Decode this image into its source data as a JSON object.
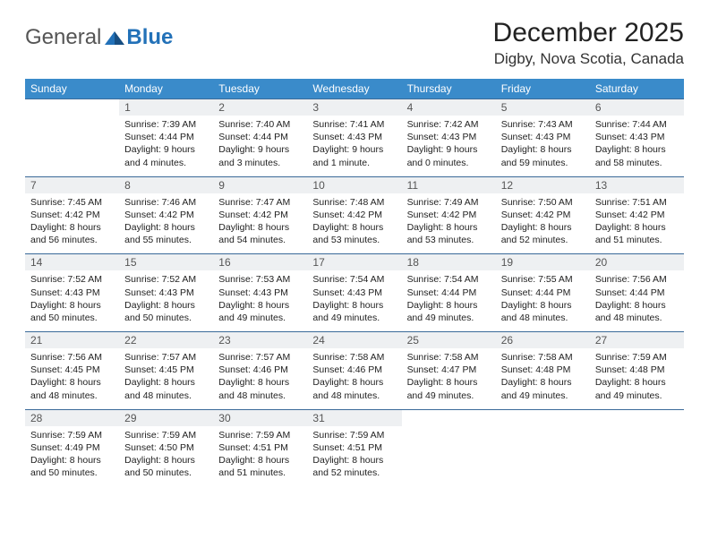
{
  "brand": {
    "part1": "General",
    "part2": "Blue"
  },
  "title": "December 2025",
  "location": "Digby, Nova Scotia, Canada",
  "colors": {
    "header_bg": "#3a8bca",
    "header_text": "#ffffff",
    "daynum_bg": "#eef0f2",
    "daynum_text": "#555555",
    "row_border": "#3a6a99",
    "body_text": "#222222",
    "brand_gray": "#555555",
    "brand_blue": "#2271b8",
    "background": "#ffffff"
  },
  "days_of_week": [
    "Sunday",
    "Monday",
    "Tuesday",
    "Wednesday",
    "Thursday",
    "Friday",
    "Saturday"
  ],
  "first_weekday_index": 1,
  "days": [
    {
      "n": 1,
      "sunrise": "7:39 AM",
      "sunset": "4:44 PM",
      "daylight": "9 hours and 4 minutes."
    },
    {
      "n": 2,
      "sunrise": "7:40 AM",
      "sunset": "4:44 PM",
      "daylight": "9 hours and 3 minutes."
    },
    {
      "n": 3,
      "sunrise": "7:41 AM",
      "sunset": "4:43 PM",
      "daylight": "9 hours and 1 minute."
    },
    {
      "n": 4,
      "sunrise": "7:42 AM",
      "sunset": "4:43 PM",
      "daylight": "9 hours and 0 minutes."
    },
    {
      "n": 5,
      "sunrise": "7:43 AM",
      "sunset": "4:43 PM",
      "daylight": "8 hours and 59 minutes."
    },
    {
      "n": 6,
      "sunrise": "7:44 AM",
      "sunset": "4:43 PM",
      "daylight": "8 hours and 58 minutes."
    },
    {
      "n": 7,
      "sunrise": "7:45 AM",
      "sunset": "4:42 PM",
      "daylight": "8 hours and 56 minutes."
    },
    {
      "n": 8,
      "sunrise": "7:46 AM",
      "sunset": "4:42 PM",
      "daylight": "8 hours and 55 minutes."
    },
    {
      "n": 9,
      "sunrise": "7:47 AM",
      "sunset": "4:42 PM",
      "daylight": "8 hours and 54 minutes."
    },
    {
      "n": 10,
      "sunrise": "7:48 AM",
      "sunset": "4:42 PM",
      "daylight": "8 hours and 53 minutes."
    },
    {
      "n": 11,
      "sunrise": "7:49 AM",
      "sunset": "4:42 PM",
      "daylight": "8 hours and 53 minutes."
    },
    {
      "n": 12,
      "sunrise": "7:50 AM",
      "sunset": "4:42 PM",
      "daylight": "8 hours and 52 minutes."
    },
    {
      "n": 13,
      "sunrise": "7:51 AM",
      "sunset": "4:42 PM",
      "daylight": "8 hours and 51 minutes."
    },
    {
      "n": 14,
      "sunrise": "7:52 AM",
      "sunset": "4:43 PM",
      "daylight": "8 hours and 50 minutes."
    },
    {
      "n": 15,
      "sunrise": "7:52 AM",
      "sunset": "4:43 PM",
      "daylight": "8 hours and 50 minutes."
    },
    {
      "n": 16,
      "sunrise": "7:53 AM",
      "sunset": "4:43 PM",
      "daylight": "8 hours and 49 minutes."
    },
    {
      "n": 17,
      "sunrise": "7:54 AM",
      "sunset": "4:43 PM",
      "daylight": "8 hours and 49 minutes."
    },
    {
      "n": 18,
      "sunrise": "7:54 AM",
      "sunset": "4:44 PM",
      "daylight": "8 hours and 49 minutes."
    },
    {
      "n": 19,
      "sunrise": "7:55 AM",
      "sunset": "4:44 PM",
      "daylight": "8 hours and 48 minutes."
    },
    {
      "n": 20,
      "sunrise": "7:56 AM",
      "sunset": "4:44 PM",
      "daylight": "8 hours and 48 minutes."
    },
    {
      "n": 21,
      "sunrise": "7:56 AM",
      "sunset": "4:45 PM",
      "daylight": "8 hours and 48 minutes."
    },
    {
      "n": 22,
      "sunrise": "7:57 AM",
      "sunset": "4:45 PM",
      "daylight": "8 hours and 48 minutes."
    },
    {
      "n": 23,
      "sunrise": "7:57 AM",
      "sunset": "4:46 PM",
      "daylight": "8 hours and 48 minutes."
    },
    {
      "n": 24,
      "sunrise": "7:58 AM",
      "sunset": "4:46 PM",
      "daylight": "8 hours and 48 minutes."
    },
    {
      "n": 25,
      "sunrise": "7:58 AM",
      "sunset": "4:47 PM",
      "daylight": "8 hours and 49 minutes."
    },
    {
      "n": 26,
      "sunrise": "7:58 AM",
      "sunset": "4:48 PM",
      "daylight": "8 hours and 49 minutes."
    },
    {
      "n": 27,
      "sunrise": "7:59 AM",
      "sunset": "4:48 PM",
      "daylight": "8 hours and 49 minutes."
    },
    {
      "n": 28,
      "sunrise": "7:59 AM",
      "sunset": "4:49 PM",
      "daylight": "8 hours and 50 minutes."
    },
    {
      "n": 29,
      "sunrise": "7:59 AM",
      "sunset": "4:50 PM",
      "daylight": "8 hours and 50 minutes."
    },
    {
      "n": 30,
      "sunrise": "7:59 AM",
      "sunset": "4:51 PM",
      "daylight": "8 hours and 51 minutes."
    },
    {
      "n": 31,
      "sunrise": "7:59 AM",
      "sunset": "4:51 PM",
      "daylight": "8 hours and 52 minutes."
    }
  ],
  "labels": {
    "sunrise": "Sunrise:",
    "sunset": "Sunset:",
    "daylight": "Daylight:"
  }
}
